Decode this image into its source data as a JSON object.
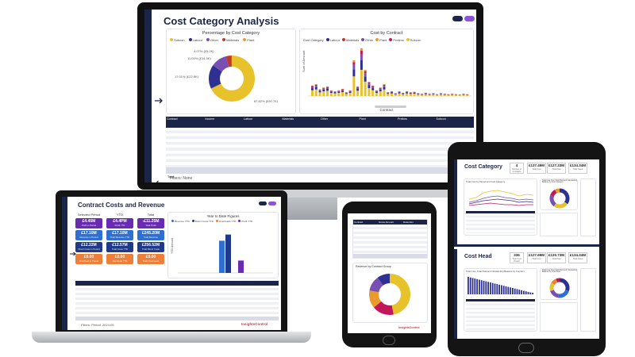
{
  "desktop": {
    "title": "Cost Category Analysis",
    "toggles": [
      "#1b2547",
      "#8a55d6"
    ],
    "pie_panel": {
      "heading": "Percentage by Cost Category",
      "legend": [
        {
          "name": "Subcon",
          "color": "#e8c22a"
        },
        {
          "name": "Labour",
          "color": "#2e3192"
        },
        {
          "name": "Other",
          "color": "#7a4fb3"
        },
        {
          "name": "Materials",
          "color": "#c0392b"
        },
        {
          "name": "Plant",
          "color": "#e99a2c"
        }
      ],
      "labels": [
        "4.07% (£5.2K)",
        "11.04% (£14.9K)",
        "17.01% (£22.8K)",
        "67.82% (£90.7K)"
      ],
      "slices": [
        0.6782,
        0.1701,
        0.1104,
        0.0407,
        0.0006
      ]
    },
    "bar_panel": {
      "heading": "Cost by Contract",
      "legend_title": "Cost Category",
      "legend": [
        {
          "name": "Labour",
          "color": "#2e3192"
        },
        {
          "name": "Materials",
          "color": "#c0392b"
        },
        {
          "name": "Other",
          "color": "#7a4fb3"
        },
        {
          "name": "Plant",
          "color": "#e99a2c"
        },
        {
          "name": "Prelims",
          "color": "#c2185b"
        },
        {
          "name": "Subcon",
          "color": "#e8c22a"
        }
      ],
      "ylabel": "Sum of Amount",
      "xlabel": "Contract",
      "bars": [
        0.22,
        0.25,
        0.14,
        0.18,
        0.2,
        0.12,
        0.1,
        0.12,
        0.15,
        0.08,
        0.12,
        0.75,
        0.2,
        1.0,
        0.55,
        0.3,
        0.22,
        0.12,
        0.18,
        0.25,
        0.08,
        0.1,
        0.06,
        0.1,
        0.07,
        0.1,
        0.08,
        0.09,
        0.06,
        0.05,
        0.07,
        0.05,
        0.06,
        0.04,
        0.06,
        0.05,
        0.04,
        0.05,
        0.04,
        0.03,
        0.05,
        0.04
      ]
    },
    "table": {
      "group_headers": [
        "Income",
        "Labour",
        "Materials",
        "Other",
        "Plant",
        "Prelims",
        "Subcon"
      ],
      "first_col": "Contract",
      "total_label": "Total"
    },
    "filters": "Filters: None"
  },
  "laptop": {
    "title": "Contract Costs and Revenue",
    "col_heads": [
      "Selected Period",
      "YTD",
      "Total"
    ],
    "kpis": [
      {
        "value": "£4.45M",
        "label": "Profit in Period",
        "color": "#6a2bb3"
      },
      {
        "value": "£4.4PM",
        "label": "Profit YTD",
        "color": "#6a2bb3"
      },
      {
        "value": "-£11.25M",
        "label": "Total Profit",
        "color": "#6a2bb3"
      },
      {
        "value": "£17.10M",
        "label": "Revenue in Period",
        "color": "#2f6fd1"
      },
      {
        "value": "£17.10M",
        "label": "Total Revenue YTD",
        "color": "#2f6fd1"
      },
      {
        "value": "£245.20M",
        "label": "Total Revenue",
        "color": "#2f6fd1"
      },
      {
        "value": "£12.22M",
        "label": "Direct Costs in Period",
        "color": "#1f3a8a"
      },
      {
        "value": "£12.57M",
        "label": "Total Costs YTD",
        "color": "#1f3a8a"
      },
      {
        "value": "£256.52M",
        "label": "Total Direct Costs",
        "color": "#1f3a8a"
      },
      {
        "value": "£0.00",
        "label": "Overhead in Period",
        "color": "#ec7f3a"
      },
      {
        "value": "£0.00",
        "label": "Overhead YTD",
        "color": "#ec7f3a"
      },
      {
        "value": "£0.00",
        "label": "Total Overheads",
        "color": "#ec7f3a"
      }
    ],
    "chart": {
      "heading": "Year to Date Figures",
      "legend": [
        "Revenue YTD",
        "Direct Costs YTD",
        "Overheads YTD",
        "Profit YTD"
      ],
      "legend_colors": [
        "#2f6fd1",
        "#1f3a8a",
        "#ec7f3a",
        "#6a2bb3"
      ],
      "ylabel": "YTD Amount",
      "bars": [
        0.78,
        0.93,
        0.0,
        0.3
      ]
    },
    "filters": "Filters: Period: 2024-05",
    "brand": "InsightsControl"
  },
  "phone": {
    "table_headers": [
      "Contract",
      "Gross Amount",
      "Retention"
    ],
    "total_label": "Total",
    "donut_heading": "Revenue by Contract Group",
    "donut": [
      {
        "value": 0.47,
        "color": "#e8c22a"
      },
      {
        "value": 0.17,
        "color": "#c2185b"
      },
      {
        "value": 0.14,
        "color": "#e99a2c"
      },
      {
        "value": 0.12,
        "color": "#7a4fb3"
      },
      {
        "value": 0.1,
        "color": "#2e3192"
      }
    ],
    "brand": "InsightsControl"
  },
  "tablet": {
    "cost_category": {
      "title": "Cost Category",
      "cards": [
        {
          "value": "4",
          "label": "Number of Contracts"
        },
        {
          "value": "£137.49M",
          "label": "Total Cost"
        },
        {
          "value": "£127.33M",
          "label": "Total Paid"
        },
        {
          "value": "£134.34M",
          "label": "Total Owed"
        }
      ],
      "chart_heading": "Total Cost by Period and Cost Category",
      "side_heading": "Total Cost Over Total Paid and Outstanding Balance by Cost Category"
    },
    "cost_head": {
      "title": "Cost Head",
      "cards": [
        {
          "value": "336",
          "label": "Total Cost Heads"
        },
        {
          "value": "£127.69M",
          "label": "Total Cost"
        },
        {
          "value": "£120.73M",
          "label": "Total Paid"
        },
        {
          "value": "£134.34M",
          "label": "Total Owed"
        }
      ],
      "chart_heading": "Total Cost, Total Paid and Outstanding Balance by Contract",
      "side_heading": "Total Cost Over Total Paid and Outstanding Balance by Cost Head"
    }
  }
}
